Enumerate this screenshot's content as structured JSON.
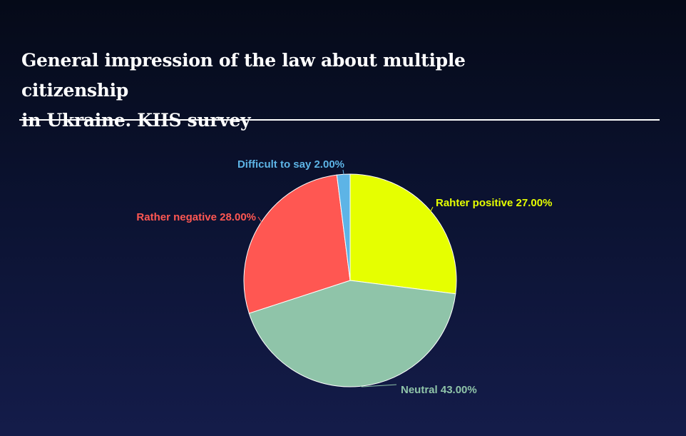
{
  "title": "General impression of the law about multiple citizenship\nin Ukraine.  KIIS survey",
  "chart_data": {
    "type": "pie",
    "slices": [
      {
        "label": "Rahter positive",
        "value": 27.0,
        "display": "Rahter positive 27.00%",
        "color": "#e6ff00",
        "label_color": "#e6ff00"
      },
      {
        "label": "Neutral",
        "value": 43.0,
        "display": "Neutral 43.00%",
        "color": "#8fc4a9",
        "label_color": "#8fc4a9"
      },
      {
        "label": "Rather negative",
        "value": 28.0,
        "display": "Rather negative 28.00%",
        "color": "#ff5752",
        "label_color": "#ff5752"
      },
      {
        "label": "Difficult to say",
        "value": 2.0,
        "display": "Difficult to say 2.00%",
        "color": "#5db4e6",
        "label_color": "#5db4e6"
      }
    ],
    "start_angle": "12 o'clock",
    "direction": "clockwise"
  }
}
